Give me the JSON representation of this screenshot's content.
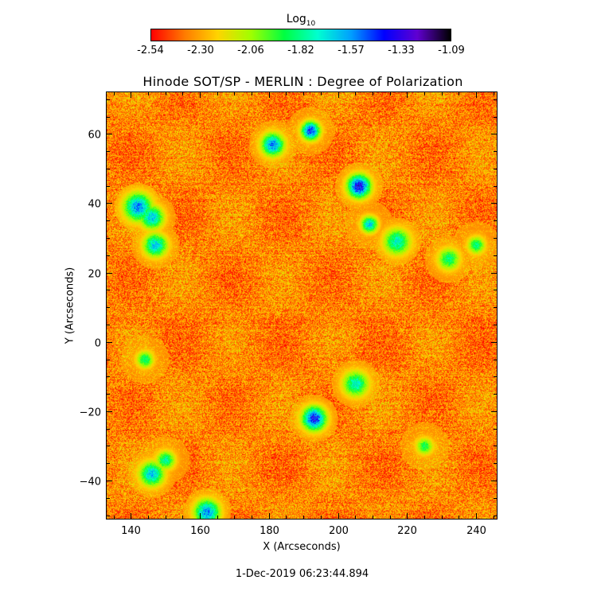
{
  "colorbar": {
    "title": "Log",
    "title_sub": "10",
    "ticks": [
      "-2.54",
      "-2.30",
      "-2.06",
      "-1.82",
      "-1.57",
      "-1.33",
      "-1.09"
    ],
    "range": [
      -2.54,
      -1.09
    ],
    "colormap": [
      "#ff0000",
      "#ff7a00",
      "#ffd400",
      "#a0ff00",
      "#00ff40",
      "#00ffd0",
      "#00a0ff",
      "#0000ff",
      "#6000d0",
      "#000000"
    ]
  },
  "chart_data": {
    "type": "heatmap",
    "title": "Hinode SOT/SP - MERLIN : Degree of Polarization",
    "xlabel": "X (Arcseconds)",
    "ylabel": "Y (Arcseconds)",
    "xlim": [
      133,
      246
    ],
    "ylim": [
      -51,
      72
    ],
    "xticks": [
      140,
      160,
      180,
      200,
      220,
      240
    ],
    "yticks": [
      -40,
      -20,
      0,
      20,
      40,
      60
    ],
    "value_unit": "Log10 degree of polarization",
    "background_level": -2.35,
    "features": [
      {
        "x": 206,
        "y": 45,
        "level": -1.3
      },
      {
        "x": 192,
        "y": 61,
        "level": -1.35
      },
      {
        "x": 181,
        "y": 57,
        "level": -1.5
      },
      {
        "x": 142,
        "y": 39,
        "level": -1.5
      },
      {
        "x": 146,
        "y": 36,
        "level": -1.6
      },
      {
        "x": 147,
        "y": 28,
        "level": -1.6
      },
      {
        "x": 209,
        "y": 34,
        "level": -1.6
      },
      {
        "x": 217,
        "y": 29,
        "level": -1.7
      },
      {
        "x": 193,
        "y": -22,
        "level": -1.35
      },
      {
        "x": 205,
        "y": -12,
        "level": -1.7
      },
      {
        "x": 146,
        "y": -38,
        "level": -1.6
      },
      {
        "x": 150,
        "y": -34,
        "level": -1.75
      },
      {
        "x": 162,
        "y": -49,
        "level": -1.5
      },
      {
        "x": 144,
        "y": -5,
        "level": -1.8
      },
      {
        "x": 232,
        "y": 24,
        "level": -1.8
      },
      {
        "x": 240,
        "y": 28,
        "level": -1.8
      },
      {
        "x": 225,
        "y": -30,
        "level": -1.85
      }
    ]
  },
  "footer": {
    "timestamp": "1-Dec-2019 06:23:44.894"
  }
}
